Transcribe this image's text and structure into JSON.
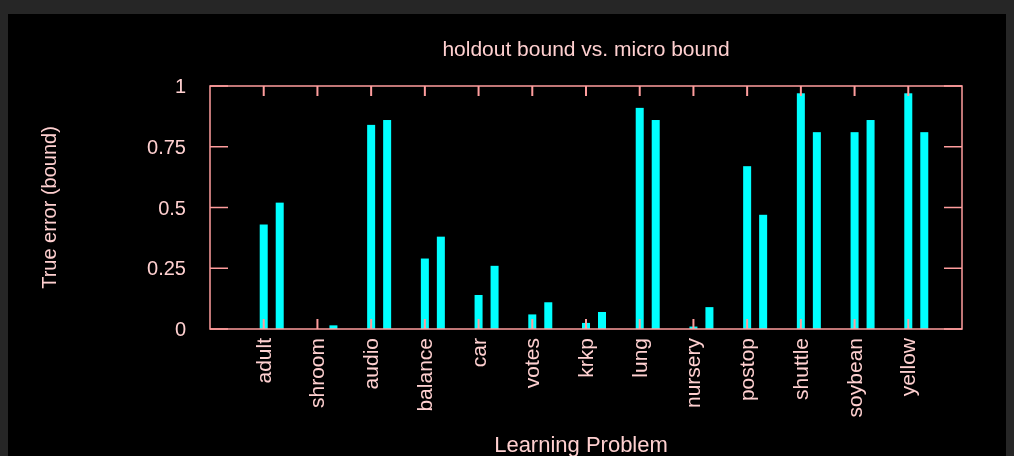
{
  "chart_data": {
    "type": "bar",
    "title": "holdout bound vs. micro bound",
    "xlabel": "Learning Problem",
    "ylabel": "True error (bound)",
    "categories": [
      "adult",
      "shroom",
      "audio",
      "balance",
      "car",
      "votes",
      "krkp",
      "lung",
      "nursery",
      "postop",
      "shuttle",
      "soybean",
      "yellow"
    ],
    "series": [
      {
        "color": "#00ffff",
        "values": [
          0.43,
          0,
          0.84,
          0.29,
          0.14,
          0.06,
          0.025,
          0.91,
          0.01,
          0.67,
          0.97,
          0.81,
          0.97
        ]
      },
      {
        "color": "#00ffff",
        "values": [
          0.52,
          0.015,
          0.86,
          0.38,
          0.26,
          0.11,
          0.07,
          0.86,
          0.09,
          0.47,
          0.81,
          0.86,
          0.81
        ]
      }
    ],
    "ylim": [
      0,
      1
    ],
    "yticks": [
      0,
      0.25,
      0.5,
      0.75,
      1
    ],
    "grid": false
  }
}
